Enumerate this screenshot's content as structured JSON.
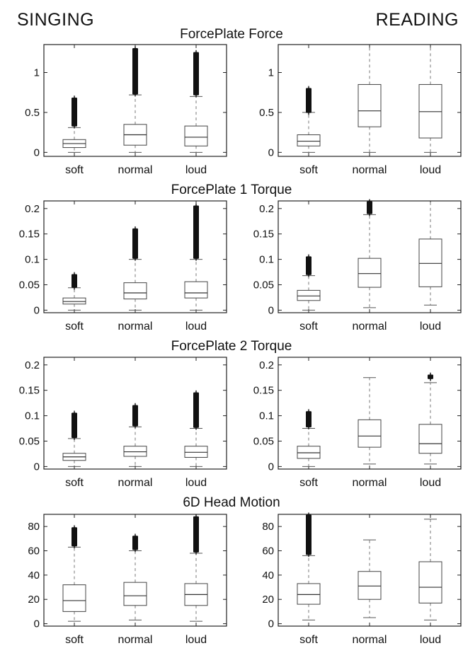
{
  "columns": {
    "left": "SINGING",
    "right": "READING"
  },
  "rows": [
    "ForcePlate Force",
    "ForcePlate 1 Torque",
    "ForcePlate 2 Torque",
    "6D Head Motion"
  ],
  "chart_data": [
    {
      "type": "box",
      "row": 0,
      "column": "SINGING",
      "categories": [
        "soft",
        "normal",
        "loud"
      ],
      "ylim": [
        -0.05,
        1.35
      ],
      "yticks": [
        0,
        0.5,
        1
      ],
      "ytick_labels": [
        "0",
        "0.5",
        "1"
      ],
      "boxes": [
        {
          "category": "soft",
          "whisker_low": 0.0,
          "q1": 0.06,
          "median": 0.11,
          "q3": 0.16,
          "whisker_high": 0.31,
          "outliers_from": 0.33,
          "outliers_to": 0.68
        },
        {
          "category": "normal",
          "whisker_low": 0.0,
          "q1": 0.09,
          "median": 0.22,
          "q3": 0.35,
          "whisker_high": 0.72,
          "outliers_from": 0.73,
          "outliers_to": 1.3
        },
        {
          "category": "loud",
          "whisker_low": 0.0,
          "q1": 0.08,
          "median": 0.19,
          "q3": 0.33,
          "whisker_high": 0.7,
          "outliers_from": 0.72,
          "outliers_to": 1.25
        }
      ]
    },
    {
      "type": "box",
      "row": 0,
      "column": "READING",
      "categories": [
        "soft",
        "normal",
        "loud"
      ],
      "ylim": [
        -0.05,
        1.35
      ],
      "yticks": [
        0,
        0.5,
        1
      ],
      "ytick_labels": [
        "0",
        "0.5",
        "1"
      ],
      "boxes": [
        {
          "category": "soft",
          "whisker_low": 0.0,
          "q1": 0.08,
          "median": 0.14,
          "q3": 0.22,
          "whisker_high": 0.5,
          "outliers_from": 0.5,
          "outliers_to": 0.8
        },
        {
          "category": "normal",
          "whisker_low": 0.0,
          "q1": 0.32,
          "median": 0.52,
          "q3": 0.85,
          "whisker_high": 1.35,
          "outliers_from": null,
          "outliers_to": null
        },
        {
          "category": "loud",
          "whisker_low": 0.0,
          "q1": 0.18,
          "median": 0.51,
          "q3": 0.85,
          "whisker_high": 1.35,
          "outliers_from": null,
          "outliers_to": null
        }
      ]
    },
    {
      "type": "box",
      "row": 1,
      "column": "SINGING",
      "categories": [
        "soft",
        "normal",
        "loud"
      ],
      "ylim": [
        -0.005,
        0.215
      ],
      "yticks": [
        0,
        0.05,
        0.1,
        0.15,
        0.2
      ],
      "ytick_labels": [
        "0",
        "0.05",
        "0.1",
        "0.15",
        "0.2"
      ],
      "boxes": [
        {
          "category": "soft",
          "whisker_low": 0.0,
          "q1": 0.012,
          "median": 0.017,
          "q3": 0.024,
          "whisker_high": 0.044,
          "outliers_from": 0.045,
          "outliers_to": 0.07
        },
        {
          "category": "normal",
          "whisker_low": 0.0,
          "q1": 0.022,
          "median": 0.034,
          "q3": 0.054,
          "whisker_high": 0.1,
          "outliers_from": 0.102,
          "outliers_to": 0.16
        },
        {
          "category": "loud",
          "whisker_low": 0.0,
          "q1": 0.024,
          "median": 0.034,
          "q3": 0.056,
          "whisker_high": 0.1,
          "outliers_from": 0.102,
          "outliers_to": 0.205
        }
      ]
    },
    {
      "type": "box",
      "row": 1,
      "column": "READING",
      "categories": [
        "soft",
        "normal",
        "loud"
      ],
      "ylim": [
        -0.005,
        0.215
      ],
      "yticks": [
        0,
        0.05,
        0.1,
        0.15,
        0.2
      ],
      "ytick_labels": [
        "0",
        "0.05",
        "0.1",
        "0.15",
        "0.2"
      ],
      "boxes": [
        {
          "category": "soft",
          "whisker_low": 0.0,
          "q1": 0.019,
          "median": 0.028,
          "q3": 0.039,
          "whisker_high": 0.068,
          "outliers_from": 0.07,
          "outliers_to": 0.105
        },
        {
          "category": "normal",
          "whisker_low": 0.005,
          "q1": 0.045,
          "median": 0.072,
          "q3": 0.102,
          "whisker_high": 0.188,
          "outliers_from": 0.19,
          "outliers_to": 0.215
        },
        {
          "category": "loud",
          "whisker_low": 0.01,
          "q1": 0.046,
          "median": 0.092,
          "q3": 0.14,
          "whisker_high": 0.215,
          "outliers_from": null,
          "outliers_to": null
        }
      ]
    },
    {
      "type": "box",
      "row": 2,
      "column": "SINGING",
      "categories": [
        "soft",
        "normal",
        "loud"
      ],
      "ylim": [
        -0.005,
        0.215
      ],
      "yticks": [
        0,
        0.05,
        0.1,
        0.15,
        0.2
      ],
      "ytick_labels": [
        "0",
        "0.05",
        "0.1",
        "0.15",
        "0.2"
      ],
      "boxes": [
        {
          "category": "soft",
          "whisker_low": 0.0,
          "q1": 0.012,
          "median": 0.019,
          "q3": 0.026,
          "whisker_high": 0.055,
          "outliers_from": 0.057,
          "outliers_to": 0.105
        },
        {
          "category": "normal",
          "whisker_low": 0.0,
          "q1": 0.02,
          "median": 0.029,
          "q3": 0.04,
          "whisker_high": 0.078,
          "outliers_from": 0.08,
          "outliers_to": 0.12
        },
        {
          "category": "loud",
          "whisker_low": 0.0,
          "q1": 0.018,
          "median": 0.028,
          "q3": 0.04,
          "whisker_high": 0.075,
          "outliers_from": 0.077,
          "outliers_to": 0.145
        }
      ]
    },
    {
      "type": "box",
      "row": 2,
      "column": "READING",
      "categories": [
        "soft",
        "normal",
        "loud"
      ],
      "ylim": [
        -0.005,
        0.215
      ],
      "yticks": [
        0,
        0.05,
        0.1,
        0.15,
        0.2
      ],
      "ytick_labels": [
        "0",
        "0.05",
        "0.1",
        "0.15",
        "0.2"
      ],
      "boxes": [
        {
          "category": "soft",
          "whisker_low": 0.0,
          "q1": 0.016,
          "median": 0.027,
          "q3": 0.04,
          "whisker_high": 0.075,
          "outliers_from": 0.078,
          "outliers_to": 0.108
        },
        {
          "category": "normal",
          "whisker_low": 0.005,
          "q1": 0.038,
          "median": 0.06,
          "q3": 0.092,
          "whisker_high": 0.175,
          "outliers_from": null,
          "outliers_to": null
        },
        {
          "category": "loud",
          "whisker_low": 0.005,
          "q1": 0.026,
          "median": 0.045,
          "q3": 0.083,
          "whisker_high": 0.165,
          "outliers_from": 0.173,
          "outliers_to": 0.18
        }
      ]
    },
    {
      "type": "box",
      "row": 3,
      "column": "SINGING",
      "categories": [
        "soft",
        "normal",
        "loud"
      ],
      "ylim": [
        -2,
        90
      ],
      "yticks": [
        0,
        20,
        40,
        60,
        80
      ],
      "ytick_labels": [
        "0",
        "20",
        "40",
        "60",
        "80"
      ],
      "boxes": [
        {
          "category": "soft",
          "whisker_low": 2,
          "q1": 10,
          "median": 19,
          "q3": 32,
          "whisker_high": 63,
          "outliers_from": 64,
          "outliers_to": 79
        },
        {
          "category": "normal",
          "whisker_low": 3,
          "q1": 15,
          "median": 23,
          "q3": 34,
          "whisker_high": 60,
          "outliers_from": 61,
          "outliers_to": 72
        },
        {
          "category": "loud",
          "whisker_low": 2,
          "q1": 15,
          "median": 24,
          "q3": 33,
          "whisker_high": 58,
          "outliers_from": 59,
          "outliers_to": 88
        }
      ]
    },
    {
      "type": "box",
      "row": 3,
      "column": "READING",
      "categories": [
        "soft",
        "normal",
        "loud"
      ],
      "ylim": [
        -2,
        90
      ],
      "yticks": [
        0,
        20,
        40,
        60,
        80
      ],
      "ytick_labels": [
        "0",
        "20",
        "40",
        "60",
        "80"
      ],
      "boxes": [
        {
          "category": "soft",
          "whisker_low": 3,
          "q1": 16,
          "median": 24,
          "q3": 33,
          "whisker_high": 56,
          "outliers_from": 57,
          "outliers_to": 90
        },
        {
          "category": "normal",
          "whisker_low": 5,
          "q1": 20,
          "median": 31,
          "q3": 43,
          "whisker_high": 69,
          "outliers_from": null,
          "outliers_to": null
        },
        {
          "category": "loud",
          "whisker_low": 3,
          "q1": 17,
          "median": 30,
          "q3": 51,
          "whisker_high": 86,
          "outliers_from": null,
          "outliers_to": null
        }
      ]
    }
  ]
}
